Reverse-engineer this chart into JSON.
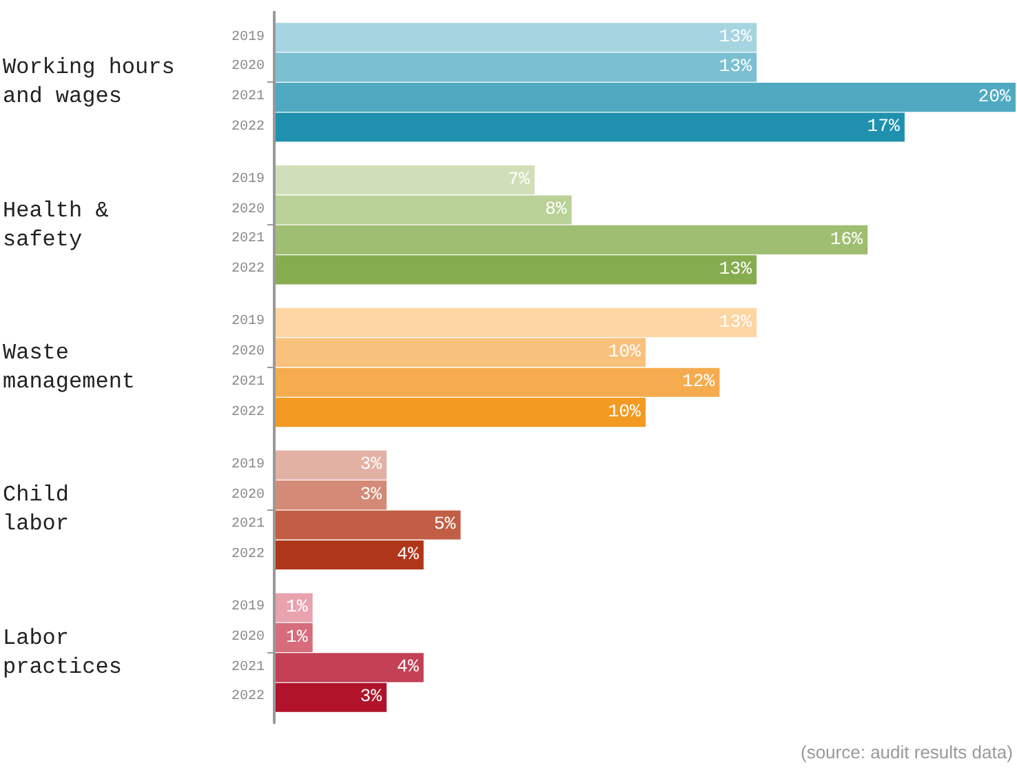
{
  "chart_data": {
    "type": "bar",
    "orientation": "horizontal",
    "categories": [
      "Working hours\nand wages",
      "Health &\nsafety",
      "Waste\nmanagement",
      "Child\nlabor",
      "Labor\npractices"
    ],
    "series": [
      {
        "name": "2019",
        "values": [
          13,
          7,
          13,
          3,
          1
        ],
        "value_labels": [
          "13%",
          "7%",
          "13%",
          "3%",
          "1%"
        ],
        "colors": [
          "#a6d4e0",
          "#d0dfb8",
          "#fdd5a3",
          "#e2b1a4",
          "#e8a3ae"
        ]
      },
      {
        "name": "2020",
        "values": [
          13,
          8,
          10,
          3,
          1
        ],
        "value_labels": [
          "13%",
          "8%",
          "10%",
          "3%",
          "1%"
        ],
        "colors": [
          "#7bc0d2",
          "#b9d197",
          "#f8c17c",
          "#d48a76",
          "#d66c7c"
        ]
      },
      {
        "name": "2021",
        "values": [
          20,
          16,
          12,
          5,
          4
        ],
        "value_labels": [
          "20%",
          "16%",
          "12%",
          "5%",
          "4%"
        ],
        "colors": [
          "#4fa9c1",
          "#9fbe72",
          "#f6ac4e",
          "#c25e45",
          "#c34055"
        ]
      },
      {
        "name": "2022",
        "values": [
          17,
          13,
          10,
          4,
          3
        ],
        "value_labels": [
          "17%",
          "13%",
          "10%",
          "4%",
          "3%"
        ],
        "colors": [
          "#1f91ae",
          "#85ad4f",
          "#f39a22",
          "#b0361a",
          "#b0132a"
        ]
      }
    ],
    "annotations": [
      "(source: audit results data)"
    ],
    "legend": false
  }
}
